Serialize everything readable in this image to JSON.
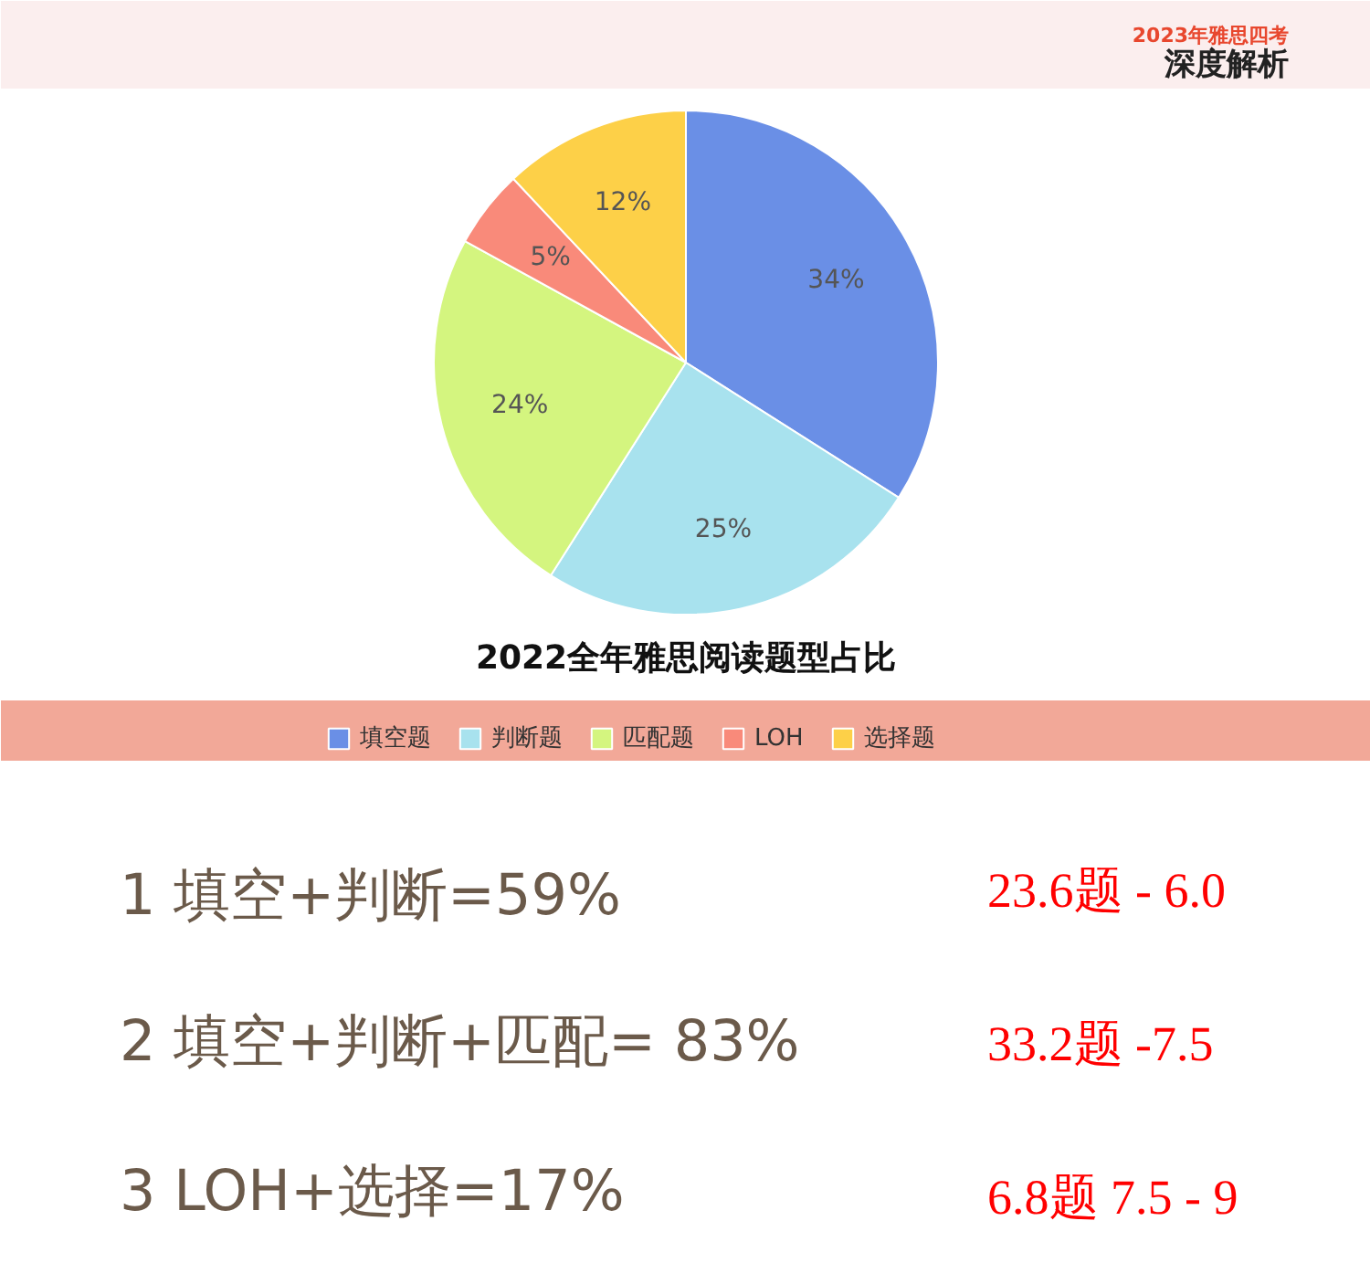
{
  "chart_data": {
    "type": "pie",
    "title": "2022全年雅思阅读题型占比",
    "categories": [
      "填空题",
      "判断题",
      "匹配题",
      "LOH",
      "选择题"
    ],
    "values": [
      34,
      25,
      24,
      5,
      12
    ],
    "colors": [
      "#6a8fe6",
      "#a8e2ee",
      "#d4f57f",
      "#f98a7a",
      "#fdd048"
    ],
    "value_labels": [
      "34%",
      "25%",
      "24%",
      "5%",
      "12%"
    ],
    "legend": "bottom",
    "annotations": [
      "2023年雅思四考",
      "深度解析",
      "1 填空+判断=59%",
      "2 填空+判断+匹配= 83%",
      "3 LOH+选择=17%",
      "23.6题 - 6.0",
      "33.2题 -7.5",
      "6.8题 7.5 - 9"
    ]
  }
}
